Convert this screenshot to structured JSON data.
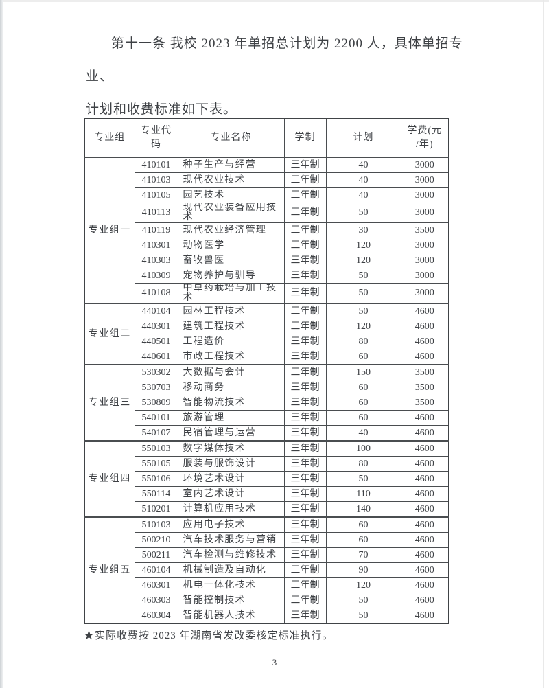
{
  "intro": {
    "line1": "第十一条 我校 2023 年单招总计划为 2200 人，具体单招专业、",
    "line2": "计划和收费标准如下表。"
  },
  "table": {
    "headers": {
      "group": "专业组",
      "code": "专业代\n码",
      "name": "专业名称",
      "duration": "学制",
      "plan": "计划",
      "tuition": "学费(元\n/年)"
    },
    "groups": [
      {
        "label": "专业组一",
        "rows": [
          [
            "410101",
            "种子生产与经营",
            "三年制",
            "40",
            "3000"
          ],
          [
            "410103",
            "现代农业技术",
            "三年制",
            "40",
            "3000"
          ],
          [
            "410105",
            "园艺技术",
            "三年制",
            "40",
            "3000"
          ],
          [
            "410113",
            "现代农业装备应用技术",
            "三年制",
            "50",
            "3000"
          ],
          [
            "410119",
            "现代农业经济管理",
            "三年制",
            "30",
            "3500"
          ],
          [
            "410301",
            "动物医学",
            "三年制",
            "120",
            "3000"
          ],
          [
            "410303",
            "畜牧兽医",
            "三年制",
            "120",
            "3000"
          ],
          [
            "410309",
            "宠物养护与驯导",
            "三年制",
            "50",
            "3000"
          ],
          [
            "410108",
            "中草药栽培与加工技术",
            "三年制",
            "50",
            "3000"
          ]
        ]
      },
      {
        "label": "专业组二",
        "rows": [
          [
            "440104",
            "园林工程技术",
            "三年制",
            "50",
            "4600"
          ],
          [
            "440301",
            "建筑工程技术",
            "三年制",
            "120",
            "4600"
          ],
          [
            "440501",
            "工程造价",
            "三年制",
            "80",
            "4600"
          ],
          [
            "440601",
            "市政工程技术",
            "三年制",
            "60",
            "4600"
          ]
        ]
      },
      {
        "label": "专业组三",
        "rows": [
          [
            "530302",
            "大数据与会计",
            "三年制",
            "150",
            "3500"
          ],
          [
            "530703",
            "移动商务",
            "三年制",
            "60",
            "3500"
          ],
          [
            "530809",
            "智能物流技术",
            "三年制",
            "60",
            "3500"
          ],
          [
            "540101",
            "旅游管理",
            "三年制",
            "60",
            "4600"
          ],
          [
            "540107",
            "民宿管理与运营",
            "三年制",
            "40",
            "4600"
          ]
        ]
      },
      {
        "label": "专业组四",
        "rows": [
          [
            "550103",
            "数字媒体技术",
            "三年制",
            "100",
            "4600"
          ],
          [
            "550105",
            "服装与服饰设计",
            "三年制",
            "80",
            "4600"
          ],
          [
            "550106",
            "环境艺术设计",
            "三年制",
            "50",
            "4600"
          ],
          [
            "550114",
            "室内艺术设计",
            "三年制",
            "110",
            "4600"
          ],
          [
            "510201",
            "计算机应用技术",
            "三年制",
            "140",
            "4600"
          ]
        ]
      },
      {
        "label": "专业组五",
        "rows": [
          [
            "510103",
            "应用电子技术",
            "三年制",
            "60",
            "4600"
          ],
          [
            "500210",
            "汽车技术服务与营销",
            "三年制",
            "60",
            "4600"
          ],
          [
            "500211",
            "汽车检测与维修技术",
            "三年制",
            "70",
            "4600"
          ],
          [
            "460104",
            "机械制造及自动化",
            "三年制",
            "90",
            "4600"
          ],
          [
            "460301",
            "机电一体化技术",
            "三年制",
            "120",
            "4600"
          ],
          [
            "460303",
            "智能控制技术",
            "三年制",
            "50",
            "4600"
          ],
          [
            "460304",
            "智能机器人技术",
            "三年制",
            "50",
            "4600"
          ]
        ]
      }
    ]
  },
  "footnote": "★实际收费按 2023 年湖南省发改委核定标准执行。",
  "page_number": "3",
  "colors": {
    "text": "#3e4145",
    "table_border": "#404346",
    "page_background": "#ffffff",
    "scan_edge": "#ced2d6"
  }
}
